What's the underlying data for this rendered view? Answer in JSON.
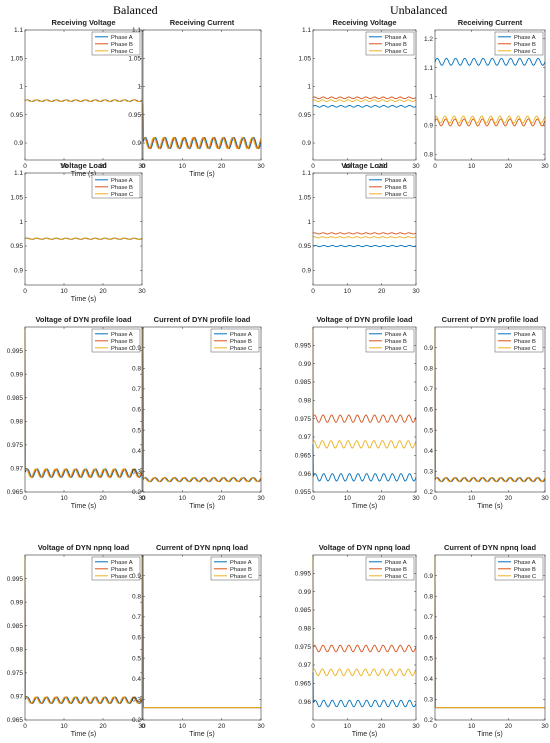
{
  "headings": {
    "left": "Balanced",
    "right": "Unbalanced"
  },
  "colors": {
    "phase_a": "#0072BD",
    "phase_b": "#D95319",
    "phase_c": "#EDB120",
    "axis": "#333333"
  },
  "chart_data": [
    {
      "id": "bal-rv",
      "type": "line",
      "title": "Receiving Voltage",
      "xlabel": "Time (s)",
      "ylabel": "",
      "xlim": [
        0,
        30
      ],
      "ylim": [
        0.87,
        1.1
      ],
      "xticks": [
        0,
        10,
        20,
        30
      ],
      "yticks": [
        0.9,
        0.95,
        1,
        1.05,
        1.1
      ],
      "ytick_labels": [
        "0.9",
        "0.95",
        "1",
        "1.05",
        "1.1"
      ],
      "legend": "top-right",
      "series": [
        {
          "name": "Phase A",
          "base": 0.975,
          "amp": 0.0015,
          "cycles": 12,
          "start": 0.975
        },
        {
          "name": "Phase B",
          "base": 0.975,
          "amp": 0.0015,
          "cycles": 12,
          "start": 0.975
        },
        {
          "name": "Phase C",
          "base": 0.975,
          "amp": 0.0015,
          "cycles": 12,
          "start": 0.975
        }
      ]
    },
    {
      "id": "bal-rc",
      "type": "line",
      "title": "Receiving Current",
      "xlabel": "Time (s)",
      "ylabel": "",
      "xlim": [
        0,
        30
      ],
      "ylim": [
        0.87,
        1.1
      ],
      "xticks": [
        0,
        10,
        20,
        30
      ],
      "yticks": [
        0.9,
        0.95,
        1,
        1.05,
        1.1
      ],
      "ytick_labels": [
        "0.9",
        "0.95",
        "1",
        "1.05",
        "1.1"
      ],
      "legend": "none",
      "series": [
        {
          "name": "Phase A",
          "base": 0.9,
          "amp": 0.01,
          "cycles": 12,
          "start": 0.97
        },
        {
          "name": "Phase B",
          "base": 0.9,
          "amp": 0.01,
          "cycles": 12,
          "start": 0.97
        },
        {
          "name": "Phase C",
          "base": 0.9,
          "amp": 0.01,
          "cycles": 12,
          "start": 0.97
        }
      ]
    },
    {
      "id": "unb-rv",
      "type": "line",
      "title": "Receiving Voltage",
      "xlabel": "",
      "ylabel": "",
      "xlim": [
        0,
        30
      ],
      "ylim": [
        0.87,
        1.1
      ],
      "xticks": [
        0,
        10,
        20,
        30
      ],
      "yticks": [
        0.9,
        0.95,
        1,
        1.05,
        1.1
      ],
      "ytick_labels": [
        "0.9",
        "0.95",
        "1",
        "1.05",
        "1.1"
      ],
      "legend": "top-right",
      "series": [
        {
          "name": "Phase A",
          "base": 0.965,
          "amp": 0.0015,
          "cycles": 12,
          "start": 0.965
        },
        {
          "name": "Phase B",
          "base": 0.98,
          "amp": 0.0015,
          "cycles": 12,
          "start": 0.98
        },
        {
          "name": "Phase C",
          "base": 0.975,
          "amp": 0.0015,
          "cycles": 12,
          "start": 0.975
        }
      ]
    },
    {
      "id": "unb-rc",
      "type": "line",
      "title": "Receiving Current",
      "xlabel": "",
      "ylabel": "",
      "xlim": [
        0,
        30
      ],
      "ylim": [
        0.78,
        1.23
      ],
      "xticks": [
        0,
        10,
        20,
        30
      ],
      "yticks": [
        0.8,
        0.9,
        1,
        1.1,
        1.2
      ],
      "ytick_labels": [
        "0.8",
        "0.9",
        "1",
        "1.1",
        "1.2"
      ],
      "legend": "top-right",
      "series": [
        {
          "name": "Phase A",
          "base": 1.12,
          "amp": 0.012,
          "cycles": 12,
          "start": 1.12
        },
        {
          "name": "Phase B",
          "base": 0.91,
          "amp": 0.012,
          "cycles": 12,
          "start": 0.91
        },
        {
          "name": "Phase C",
          "base": 0.92,
          "amp": 0.012,
          "cycles": 12,
          "start": 0.92
        }
      ]
    },
    {
      "id": "bal-vl",
      "type": "line",
      "title": "Voltage Load",
      "xlabel": "Time (s)",
      "ylabel": "",
      "xlim": [
        0,
        30
      ],
      "ylim": [
        0.87,
        1.1
      ],
      "xticks": [
        0,
        10,
        20,
        30
      ],
      "yticks": [
        0.9,
        0.95,
        1,
        1.05,
        1.1
      ],
      "ytick_labels": [
        "0.9",
        "0.95",
        "1",
        "1.05",
        "1.1"
      ],
      "legend": "top-right",
      "series": [
        {
          "name": "Phase A",
          "base": 0.965,
          "amp": 0.0012,
          "cycles": 12,
          "start": 0.965
        },
        {
          "name": "Phase B",
          "base": 0.965,
          "amp": 0.0012,
          "cycles": 12,
          "start": 0.965
        },
        {
          "name": "Phase C",
          "base": 0.965,
          "amp": 0.0012,
          "cycles": 12,
          "start": 0.965
        }
      ]
    },
    {
      "id": "unb-vl",
      "type": "line",
      "title": "Voltage Load",
      "xlabel": "",
      "ylabel": "",
      "xlim": [
        0,
        30
      ],
      "ylim": [
        0.87,
        1.1
      ],
      "xticks": [
        0,
        10,
        20,
        30
      ],
      "yticks": [
        0.9,
        0.95,
        1,
        1.05,
        1.1
      ],
      "ytick_labels": [
        "0.9",
        "0.95",
        "1",
        "1.05",
        "1.1"
      ],
      "legend": "top-right",
      "series": [
        {
          "name": "Phase A",
          "base": 0.95,
          "amp": 0.0012,
          "cycles": 12,
          "start": 0.95
        },
        {
          "name": "Phase B",
          "base": 0.976,
          "amp": 0.0012,
          "cycles": 12,
          "start": 0.976
        },
        {
          "name": "Phase C",
          "base": 0.968,
          "amp": 0.0012,
          "cycles": 12,
          "start": 0.968
        }
      ]
    },
    {
      "id": "bal-vdp",
      "type": "line",
      "title": "Voltage of DYN profile load",
      "xlabel": "Time (s)",
      "ylabel": "",
      "xlim": [
        0,
        30
      ],
      "ylim": [
        0.965,
        1
      ],
      "xticks": [
        0,
        10,
        20,
        30
      ],
      "yticks": [
        0.965,
        0.97,
        0.975,
        0.98,
        0.985,
        0.99,
        0.995
      ],
      "ytick_labels": [
        "0.965",
        "0.97",
        "0.975",
        "0.98",
        "0.985",
        "0.99",
        "0.995"
      ],
      "legend": "top-right",
      "series": [
        {
          "name": "Phase A",
          "base": 0.969,
          "amp": 0.0009,
          "cycles": 12,
          "start": 1.0
        },
        {
          "name": "Phase B",
          "base": 0.969,
          "amp": 0.0009,
          "cycles": 12,
          "start": 1.0
        },
        {
          "name": "Phase C",
          "base": 0.969,
          "amp": 0.0009,
          "cycles": 12,
          "start": 1.0
        }
      ]
    },
    {
      "id": "bal-cdp",
      "type": "line",
      "title": "Current of DYN profile load",
      "xlabel": "Time (s)",
      "ylabel": "",
      "xlim": [
        0,
        30
      ],
      "ylim": [
        0.2,
        1
      ],
      "xticks": [
        0,
        10,
        20,
        30
      ],
      "yticks": [
        0.2,
        0.3,
        0.4,
        0.5,
        0.6,
        0.7,
        0.8,
        0.9
      ],
      "ytick_labels": [
        "0.2",
        "0.3",
        "0.4",
        "0.5",
        "0.6",
        "0.7",
        "0.8",
        "0.9"
      ],
      "legend": "top-right",
      "series": [
        {
          "name": "Phase A",
          "base": 0.26,
          "amp": 0.01,
          "cycles": 12,
          "start": 1.0
        },
        {
          "name": "Phase B",
          "base": 0.26,
          "amp": 0.01,
          "cycles": 12,
          "start": 1.0
        },
        {
          "name": "Phase C",
          "base": 0.26,
          "amp": 0.01,
          "cycles": 12,
          "start": 1.0
        }
      ]
    },
    {
      "id": "unb-vdp",
      "type": "line",
      "title": "Voltage of DYN profile load",
      "xlabel": "Time (s)",
      "ylabel": "",
      "xlim": [
        0,
        30
      ],
      "ylim": [
        0.955,
        1
      ],
      "xticks": [
        0,
        10,
        20,
        30
      ],
      "yticks": [
        0.955,
        0.96,
        0.965,
        0.97,
        0.975,
        0.98,
        0.985,
        0.99,
        0.995
      ],
      "ytick_labels": [
        "0.955",
        "0.96",
        "0.965",
        "0.97",
        "0.975",
        "0.98",
        "0.985",
        "0.99",
        "0.995"
      ],
      "legend": "top-right",
      "series": [
        {
          "name": "Phase A",
          "base": 0.959,
          "amp": 0.001,
          "cycles": 12,
          "start": 0.968
        },
        {
          "name": "Phase B",
          "base": 0.975,
          "amp": 0.001,
          "cycles": 12,
          "start": 0.975
        },
        {
          "name": "Phase C",
          "base": 0.968,
          "amp": 0.001,
          "cycles": 12,
          "start": 1.0
        }
      ]
    },
    {
      "id": "unb-cdp",
      "type": "line",
      "title": "Current of DYN profile load",
      "xlabel": "Time (s)",
      "ylabel": "",
      "xlim": [
        0,
        30
      ],
      "ylim": [
        0.2,
        1
      ],
      "xticks": [
        0,
        10,
        20,
        30
      ],
      "yticks": [
        0.2,
        0.3,
        0.4,
        0.5,
        0.6,
        0.7,
        0.8,
        0.9
      ],
      "ytick_labels": [
        "0.2",
        "0.3",
        "0.4",
        "0.5",
        "0.6",
        "0.7",
        "0.8",
        "0.9"
      ],
      "legend": "top-right",
      "series": [
        {
          "name": "Phase A",
          "base": 0.26,
          "amp": 0.01,
          "cycles": 12,
          "start": 1.0
        },
        {
          "name": "Phase B",
          "base": 0.26,
          "amp": 0.01,
          "cycles": 12,
          "start": 1.0
        },
        {
          "name": "Phase C",
          "base": 0.26,
          "amp": 0.01,
          "cycles": 12,
          "start": 1.0
        }
      ]
    },
    {
      "id": "bal-vdn",
      "type": "line",
      "title": "Voltage of DYN npnq load",
      "xlabel": "Time (s)",
      "ylabel": "",
      "xlim": [
        0,
        30
      ],
      "ylim": [
        0.965,
        1
      ],
      "xticks": [
        0,
        10,
        20,
        30
      ],
      "yticks": [
        0.965,
        0.97,
        0.975,
        0.98,
        0.985,
        0.99,
        0.995
      ],
      "ytick_labels": [
        "0.965",
        "0.97",
        "0.975",
        "0.98",
        "0.985",
        "0.99",
        "0.995"
      ],
      "legend": "top-right",
      "series": [
        {
          "name": "Phase A",
          "base": 0.9692,
          "amp": 0.0007,
          "cycles": 12,
          "start": 1.0
        },
        {
          "name": "Phase B",
          "base": 0.9692,
          "amp": 0.0007,
          "cycles": 12,
          "start": 1.0
        },
        {
          "name": "Phase C",
          "base": 0.9692,
          "amp": 0.0007,
          "cycles": 12,
          "start": 1.0
        }
      ]
    },
    {
      "id": "bal-cdn",
      "type": "line",
      "title": "Current of DYN npnq load",
      "xlabel": "Time (s)",
      "ylabel": "",
      "xlim": [
        0,
        30
      ],
      "ylim": [
        0.2,
        1
      ],
      "xticks": [
        0,
        10,
        20,
        30
      ],
      "yticks": [
        0.2,
        0.3,
        0.4,
        0.5,
        0.6,
        0.7,
        0.8,
        0.9
      ],
      "ytick_labels": [
        "0.2",
        "0.3",
        "0.4",
        "0.5",
        "0.6",
        "0.7",
        "0.8",
        "0.9"
      ],
      "legend": "top-right",
      "series": [
        {
          "name": "Phase A",
          "base": 0.26,
          "amp": 0.0,
          "cycles": 12,
          "start": 1.0
        },
        {
          "name": "Phase B",
          "base": 0.26,
          "amp": 0.0,
          "cycles": 12,
          "start": 1.0
        },
        {
          "name": "Phase C",
          "base": 0.26,
          "amp": 0.0,
          "cycles": 12,
          "start": 1.0
        }
      ]
    },
    {
      "id": "unb-vdn",
      "type": "line",
      "title": "Voltage of DYN npnq load",
      "xlabel": "Time (s)",
      "ylabel": "",
      "xlim": [
        0,
        30
      ],
      "ylim": [
        0.955,
        1
      ],
      "xticks": [
        0,
        10,
        20,
        30
      ],
      "yticks": [
        0.96,
        0.965,
        0.97,
        0.975,
        0.98,
        0.985,
        0.99,
        0.995
      ],
      "ytick_labels": [
        "0.96",
        "0.965",
        "0.97",
        "0.975",
        "0.98",
        "0.985",
        "0.99",
        "0.995"
      ],
      "legend": "top-right",
      "series": [
        {
          "name": "Phase A",
          "base": 0.9595,
          "amp": 0.0009,
          "cycles": 12,
          "start": 0.968
        },
        {
          "name": "Phase B",
          "base": 0.9745,
          "amp": 0.0009,
          "cycles": 12,
          "start": 0.975
        },
        {
          "name": "Phase C",
          "base": 0.968,
          "amp": 0.0009,
          "cycles": 12,
          "start": 1.0
        }
      ]
    },
    {
      "id": "unb-cdn",
      "type": "line",
      "title": "Current of DYN npnq load",
      "xlabel": "Time (s)",
      "ylabel": "",
      "xlim": [
        0,
        30
      ],
      "ylim": [
        0.2,
        1
      ],
      "xticks": [
        0,
        10,
        20,
        30
      ],
      "yticks": [
        0.2,
        0.3,
        0.4,
        0.5,
        0.6,
        0.7,
        0.8,
        0.9
      ],
      "ytick_labels": [
        "0.2",
        "0.3",
        "0.4",
        "0.5",
        "0.6",
        "0.7",
        "0.8",
        "0.9"
      ],
      "legend": "top-right",
      "series": [
        {
          "name": "Phase A",
          "base": 0.26,
          "amp": 0.0,
          "cycles": 12,
          "start": 1.0
        },
        {
          "name": "Phase B",
          "base": 0.26,
          "amp": 0.0,
          "cycles": 12,
          "start": 1.0
        },
        {
          "name": "Phase C",
          "base": 0.26,
          "amp": 0.0,
          "cycles": 12,
          "start": 1.0
        }
      ]
    }
  ]
}
